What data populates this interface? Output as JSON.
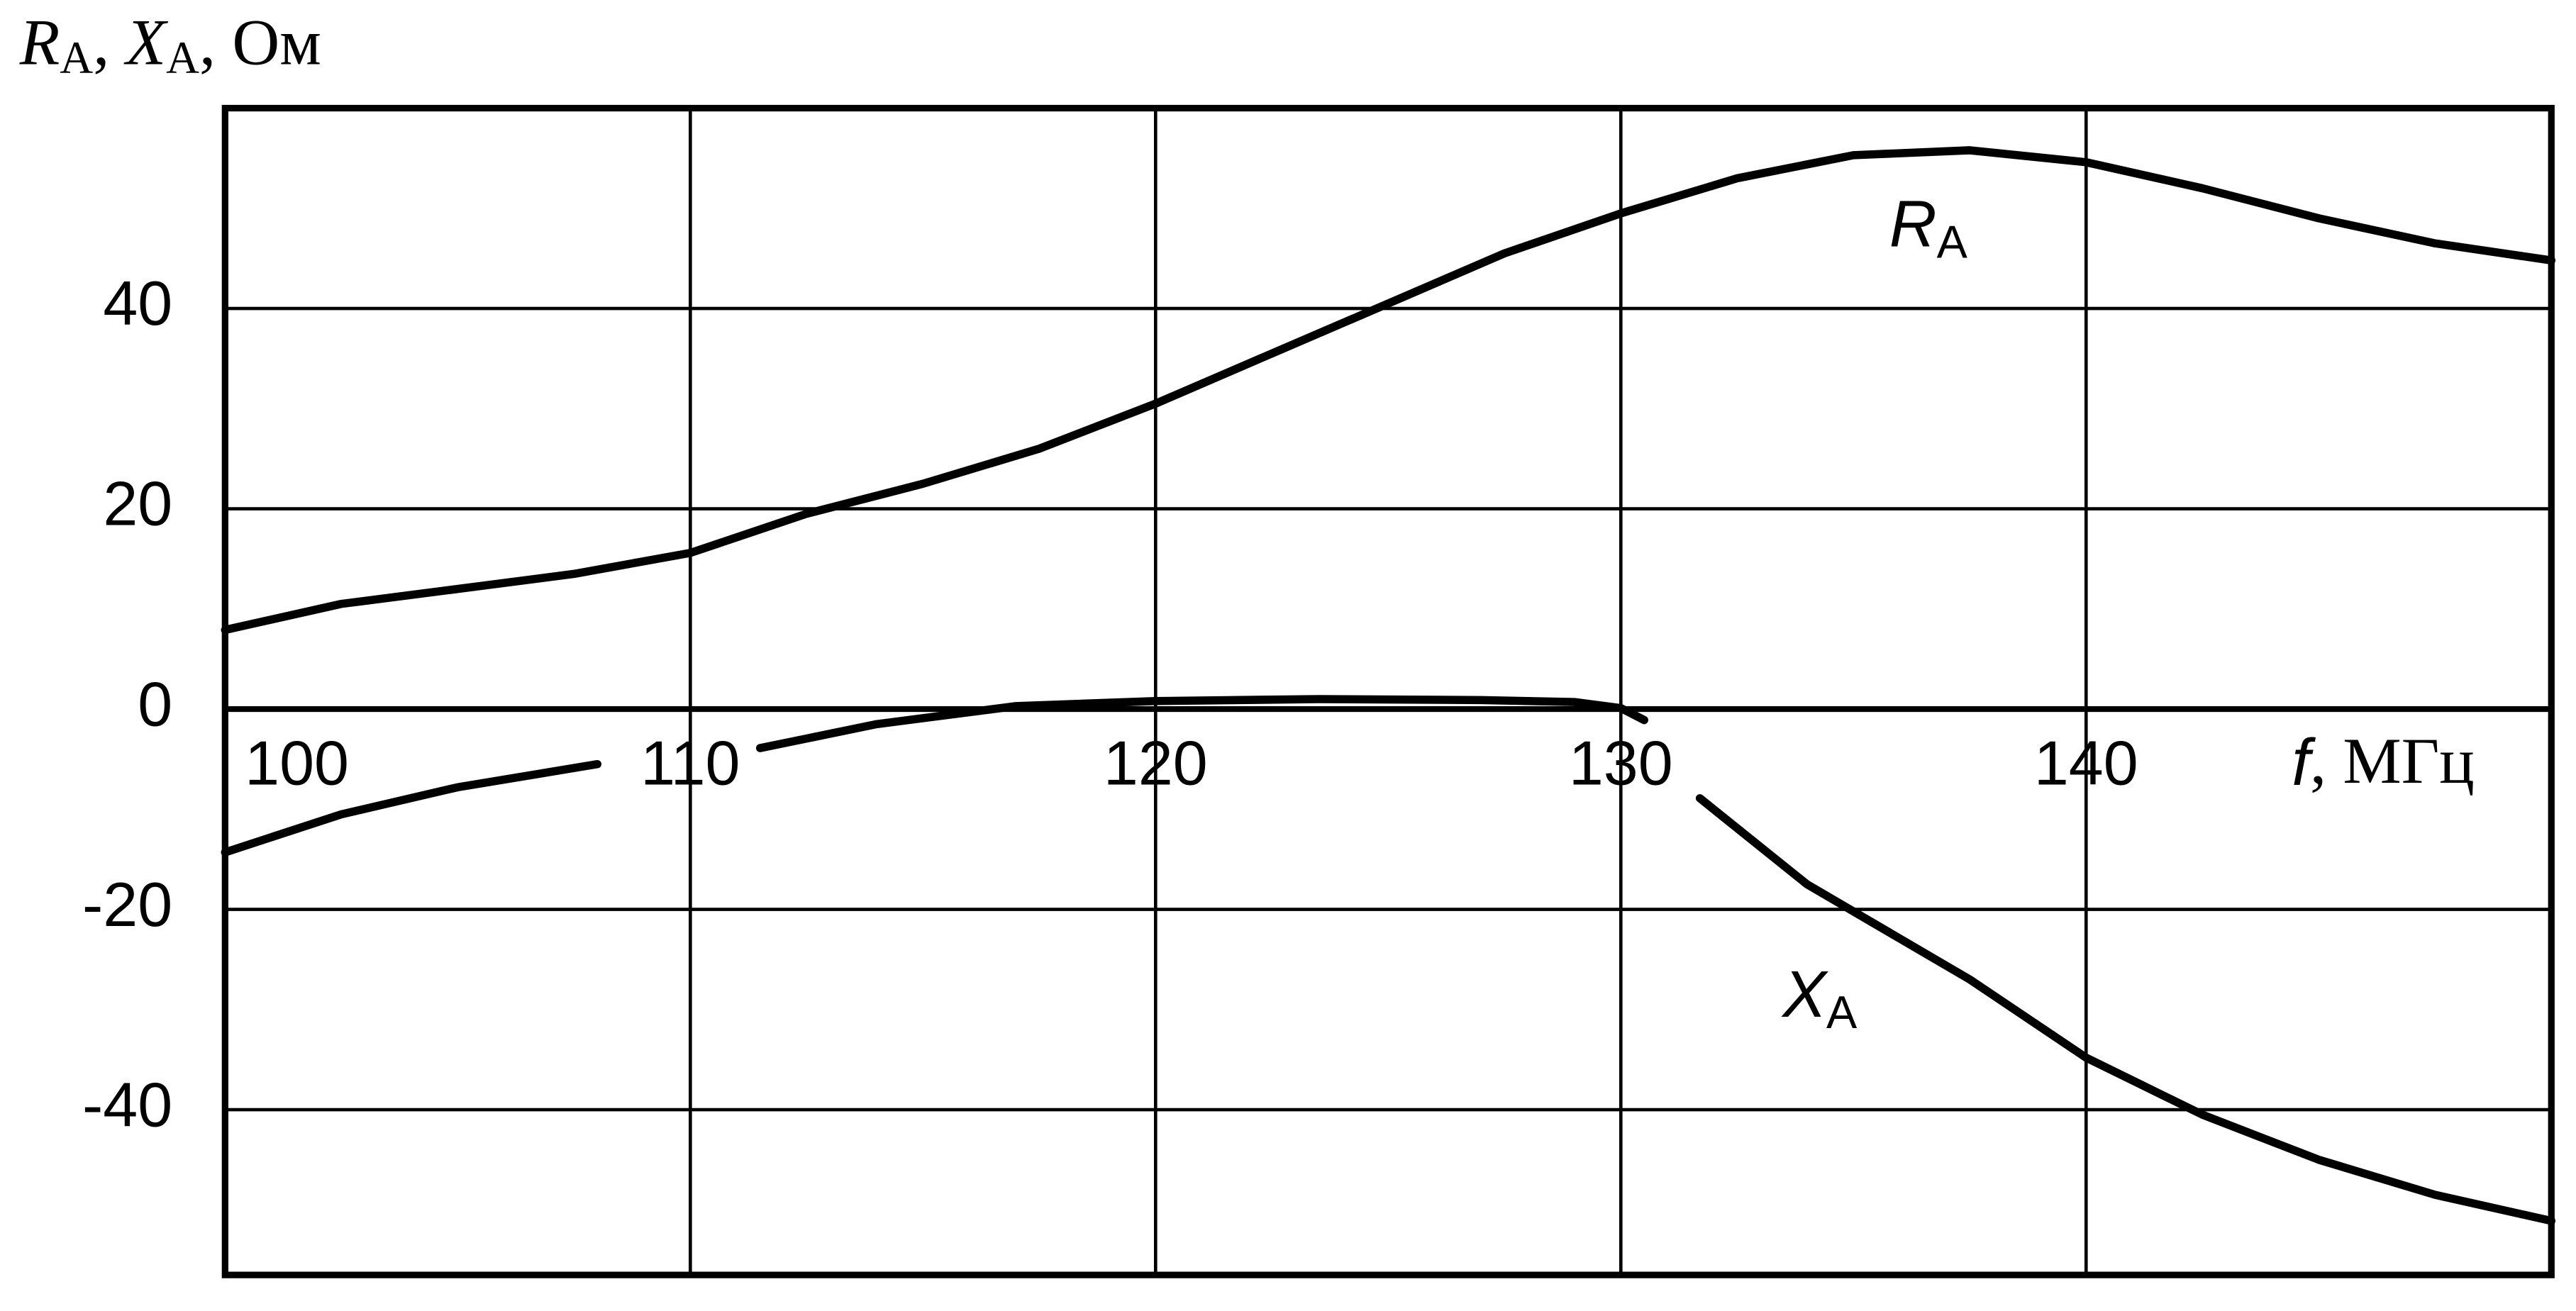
{
  "chart_data": {
    "type": "line",
    "y_label": [
      "R",
      "А",
      ", ",
      "X",
      "А",
      ", Ом"
    ],
    "x_label": [
      "f",
      ", МГц"
    ],
    "xlim": [
      100,
      150
    ],
    "xticks": [
      100,
      110,
      120,
      130,
      140
    ],
    "ylim": [
      -56.5,
      60
    ],
    "yticks": [
      -40,
      -20,
      0,
      20,
      40
    ],
    "grid": true,
    "series": [
      {
        "name": "R",
        "name_sub": "А",
        "color": "#000000",
        "x": [
          100,
          102.5,
          105,
          107.5,
          110,
          112.5,
          115,
          117.5,
          120,
          122.5,
          125,
          127.5,
          130,
          132.5,
          135,
          137.5,
          140,
          142.5,
          145,
          147.5,
          150
        ],
        "values": [
          7.9,
          10.5,
          12,
          13.5,
          15.6,
          19.5,
          22.5,
          26,
          30.5,
          35.5,
          40.5,
          45.5,
          49.5,
          53,
          55.3,
          55.8,
          54.6,
          52,
          49,
          46.5,
          44.8
        ]
      },
      {
        "name": "X",
        "name_sub": "А",
        "color": "#000000",
        "x": [
          100,
          102.5,
          105,
          108,
          109.5,
          111.5,
          114,
          117,
          120,
          123.5,
          127,
          129,
          130,
          130.5,
          131,
          131.7,
          134,
          137.5,
          140,
          142.5,
          145,
          147.5,
          150
        ],
        "values": [
          -14.3,
          -10.5,
          -7.8,
          -5.5,
          null,
          -3.9,
          -1.5,
          0.3,
          0.8,
          1,
          0.9,
          0.7,
          0.1,
          -1.1,
          null,
          -8.9,
          -17.5,
          -27,
          -34.8,
          -40.5,
          -45,
          -48.5,
          -51.1
        ]
      }
    ]
  }
}
